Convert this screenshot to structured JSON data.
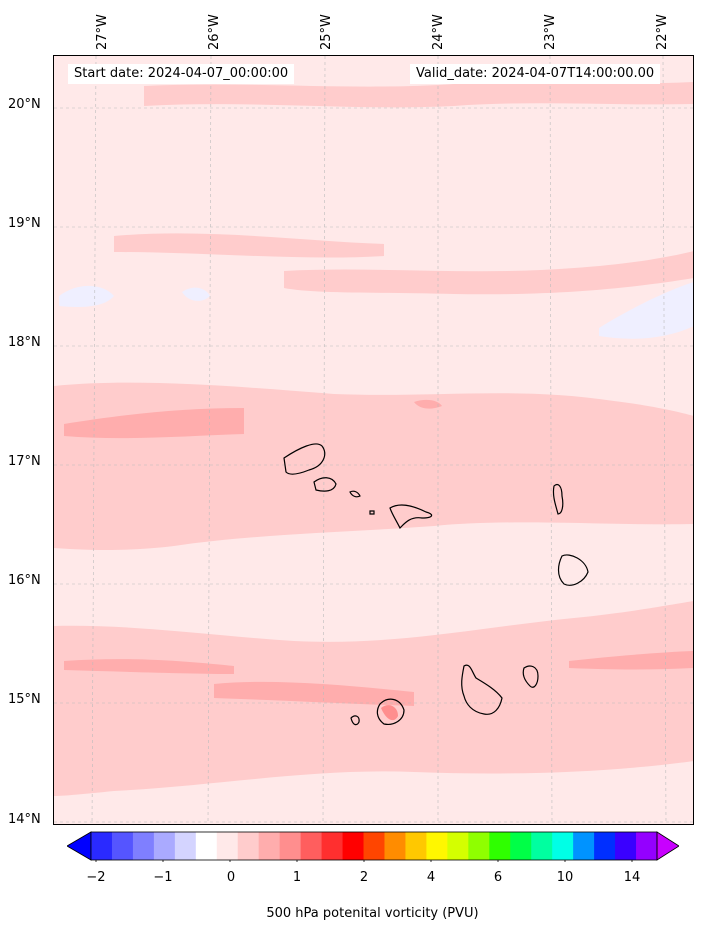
{
  "map": {
    "start_label": "Start date: 2024-04-07_00:00:00",
    "valid_label": "Valid_date: 2024-04-07T14:00:00.00",
    "lon_labels": [
      "27°W",
      "26°W",
      "25°W",
      "24°W",
      "23°W",
      "22°W"
    ],
    "lat_labels": [
      "20°N",
      "19°N",
      "18°N",
      "17°N",
      "16°N",
      "15°N",
      "14°N"
    ],
    "colors": {
      "background": "#ffe9e9",
      "light_band": "#ffcccc",
      "mid_band": "#ffadad",
      "strong": "#ff8e8e",
      "negative": "#efefff",
      "grid": "#bbbbbb",
      "coast": "#000000"
    }
  },
  "colorbar": {
    "title": "500 hPa potenital vorticity (PVU)",
    "tick_labels": [
      "−2",
      "−1",
      "0",
      "1",
      "2",
      "4",
      "6",
      "10",
      "14"
    ],
    "colors": [
      "#0000ff",
      "#2a2aff",
      "#5555ff",
      "#7f7fff",
      "#aaaaff",
      "#d4d4ff",
      "#ffffff",
      "#ffe9e9",
      "#ffcccc",
      "#ffadad",
      "#ff8e8e",
      "#ff5e5e",
      "#ff2f2f",
      "#ff0000",
      "#ff4500",
      "#ff8c00",
      "#ffc800",
      "#fff700",
      "#d4ff00",
      "#8fff00",
      "#2fff00",
      "#00ff47",
      "#00ffa0",
      "#00ffe6",
      "#0093ff",
      "#002fff",
      "#3a00ff",
      "#9400ff",
      "#c800ff"
    ]
  }
}
